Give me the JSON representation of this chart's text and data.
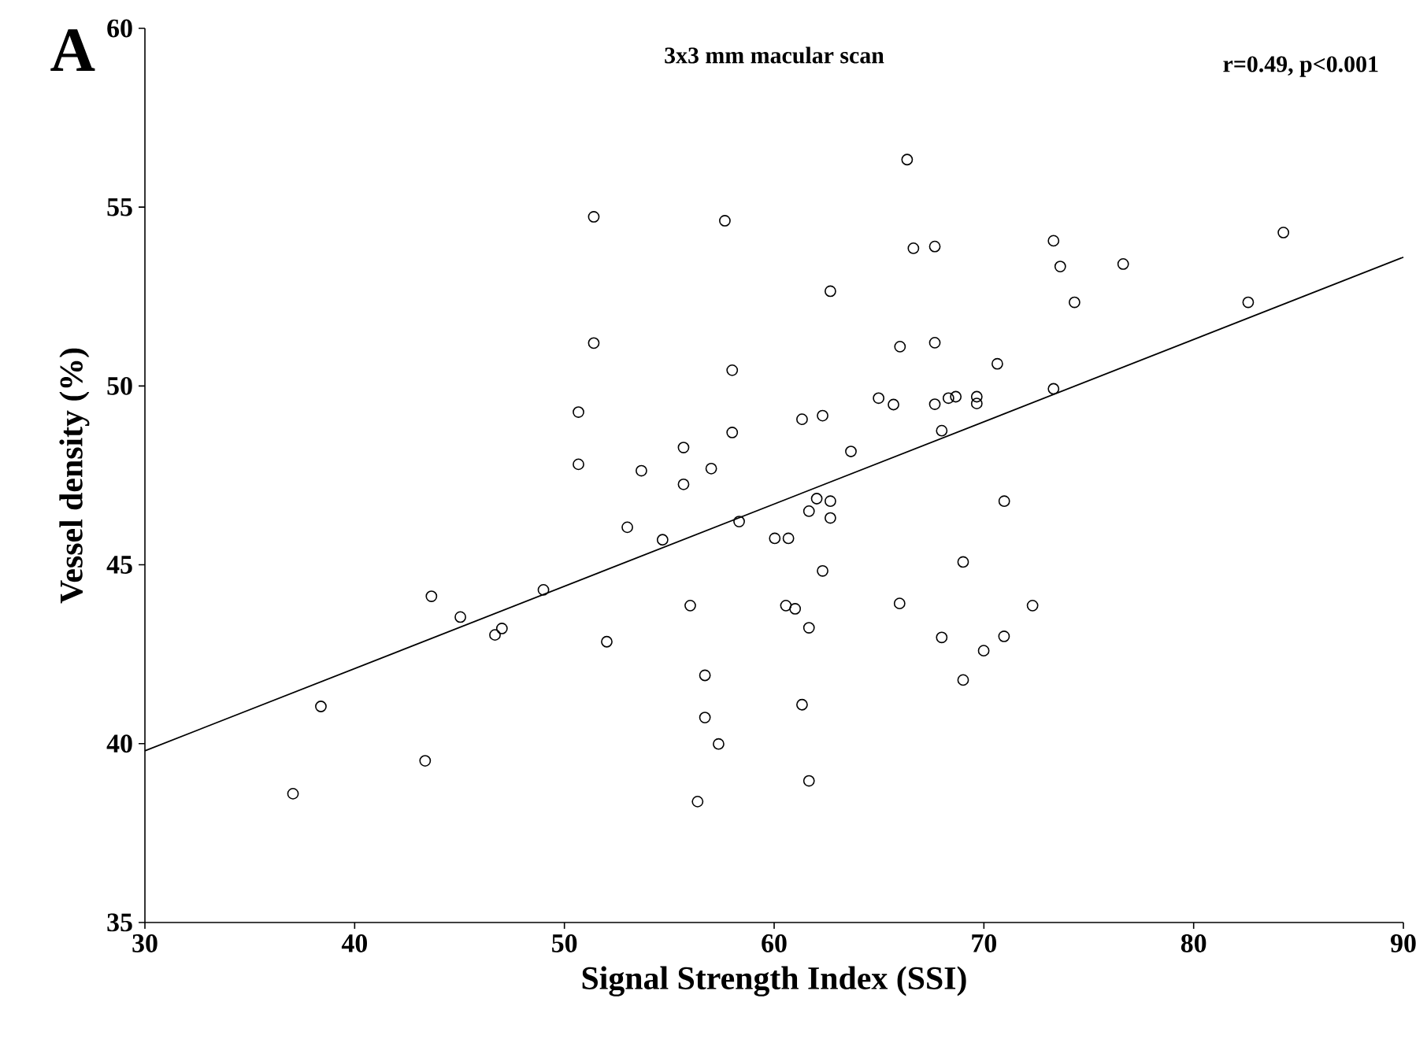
{
  "chart_data": {
    "type": "scatter",
    "title": "3x3 mm macular scan",
    "xlabel": "Signal Strength Index (SSI)",
    "ylabel": "Vessel density (%)",
    "annotations": [
      "A",
      "r=0.49, p<0.001"
    ],
    "xlim": [
      30,
      90
    ],
    "ylim": [
      35,
      60
    ],
    "xticks": [
      30,
      40,
      50,
      60,
      70,
      80,
      90
    ],
    "yticks": [
      35,
      40,
      45,
      50,
      55,
      60
    ],
    "series": [
      {
        "marker": "circle",
        "color": "#000000",
        "x": [
          51.4,
          57.65,
          51.4,
          58.0,
          50.67,
          50.67,
          53.67,
          55.68,
          55.68,
          57.0,
          58.0,
          53.0,
          54.68,
          58.33,
          49.0,
          66.34,
          66.64,
          67.66,
          62.68,
          73.32,
          73.64,
          76.64,
          74.32,
          84.28,
          82.6,
          66.0,
          67.66,
          70.64,
          73.32,
          64.98,
          65.69,
          67.66,
          68.31,
          68.66,
          69.66,
          69.66,
          61.33,
          62.31,
          63.66,
          67.99,
          62.03,
          62.68,
          61.66,
          62.68,
          60.03,
          60.68,
          70.97,
          62.31,
          69.01,
          43.66,
          45.04,
          46.69,
          47.02,
          52.02,
          56.0,
          60.56,
          56.7,
          56.7,
          57.35,
          56.35,
          38.39,
          43.36,
          37.06,
          61.0,
          61.66,
          65.98,
          67.99,
          70.96,
          72.32,
          69.99,
          69.01,
          61.33,
          61.66
        ],
        "values": [
          54.73,
          54.62,
          51.2,
          50.44,
          49.27,
          47.81,
          47.63,
          48.28,
          47.25,
          47.69,
          48.7,
          46.05,
          45.7,
          46.21,
          44.3,
          56.33,
          53.85,
          53.9,
          52.65,
          54.06,
          53.34,
          53.41,
          52.34,
          54.29,
          52.34,
          51.1,
          51.21,
          50.62,
          49.92,
          49.66,
          49.48,
          49.49,
          49.66,
          49.7,
          49.7,
          49.51,
          49.07,
          49.17,
          48.17,
          48.75,
          46.85,
          46.78,
          46.5,
          46.31,
          45.74,
          45.74,
          46.78,
          44.83,
          45.08,
          44.12,
          43.54,
          43.04,
          43.22,
          42.85,
          43.86,
          43.86,
          41.91,
          40.73,
          39.99,
          38.38,
          41.04,
          39.52,
          38.6,
          43.77,
          43.24,
          43.92,
          42.97,
          43.0,
          43.86,
          42.6,
          41.78,
          41.09,
          38.96
        ]
      },
      {
        "type": "line",
        "marker": "none",
        "color": "#000000",
        "x": [
          30,
          90
        ],
        "values": [
          39.8,
          53.6
        ]
      }
    ]
  }
}
